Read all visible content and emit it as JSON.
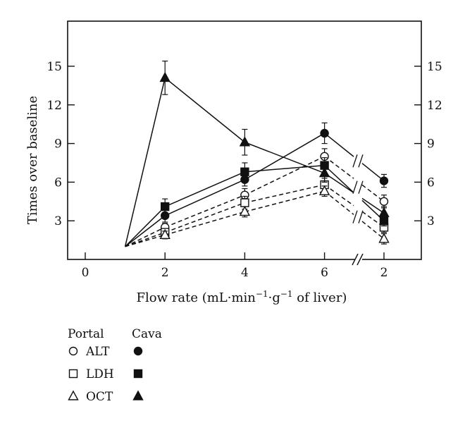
{
  "chart_data": {
    "type": "line",
    "ylabel": "Times over baseline",
    "xlabel_parts": {
      "pre": "Flow rate (mL·min",
      "sup1": "−1",
      "mid": "·g",
      "sup2": "−1",
      "post": " of liver)"
    },
    "y_ticks": [
      "3",
      "6",
      "9",
      "12",
      "15"
    ],
    "y_tick_values": [
      3,
      6,
      9,
      12,
      15
    ],
    "ylim": [
      0,
      18.5
    ],
    "x_ticks": [
      "0",
      "2",
      "4",
      "6",
      "2"
    ],
    "axis_break": "between 6 and final 2",
    "categories": [
      "1",
      "2",
      "4",
      "6",
      "2"
    ],
    "legend": {
      "header_portal": "Portal",
      "header_cava": "Cava",
      "rows": [
        "ALT",
        "LDH",
        "OCT"
      ]
    },
    "series": [
      {
        "group": "Portal",
        "marker": "circle-open",
        "values": [
          1,
          2.5,
          5.0,
          8.0,
          4.5
        ],
        "errors": [
          0,
          0.3,
          0.5,
          0.6,
          0.5
        ]
      },
      {
        "group": "Portal",
        "marker": "square-open",
        "values": [
          1,
          2.1,
          4.4,
          5.8,
          2.5
        ],
        "errors": [
          0,
          0.3,
          0.5,
          0.5,
          0.4
        ]
      },
      {
        "group": "Portal",
        "marker": "triangle-open",
        "values": [
          1,
          1.9,
          3.7,
          5.3,
          1.6
        ],
        "errors": [
          0,
          0.3,
          0.4,
          0.4,
          0.4
        ]
      },
      {
        "group": "Cava",
        "marker": "circle-filled",
        "values": [
          1,
          3.4,
          6.2,
          9.8,
          6.1
        ],
        "errors": [
          0,
          0.5,
          0.5,
          0.8,
          0.5
        ]
      },
      {
        "group": "Cava",
        "marker": "square-filled",
        "values": [
          1,
          4.1,
          6.8,
          7.3,
          3.0
        ],
        "errors": [
          0,
          0.6,
          0.7,
          0.6,
          0.4
        ]
      },
      {
        "group": "Cava",
        "marker": "triangle-filled",
        "values": [
          1,
          14.1,
          9.1,
          6.7,
          3.6
        ],
        "errors": [
          0,
          1.3,
          1.0,
          0.7,
          0.5
        ]
      }
    ]
  }
}
